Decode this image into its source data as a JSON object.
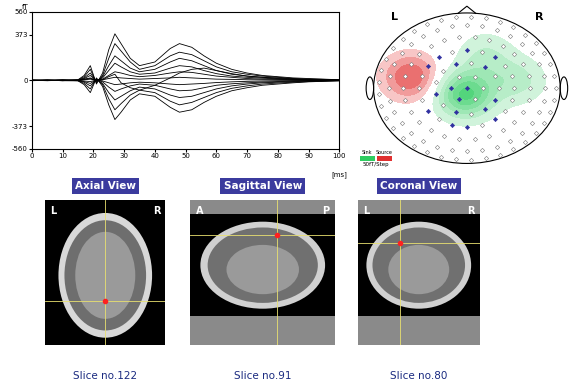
{
  "chart_data": {
    "type": "line",
    "color": "#000000",
    "x": [
      0,
      5,
      10,
      15,
      17,
      19,
      21,
      23,
      25,
      27,
      29,
      32,
      35,
      40,
      45,
      48,
      52,
      56,
      60,
      65,
      70,
      75,
      80,
      85,
      90,
      95,
      100
    ],
    "series": [
      {
        "values": [
          0,
          2,
          -3,
          5,
          40,
          120,
          -30,
          60,
          250,
          380,
          300,
          180,
          120,
          150,
          260,
          300,
          270,
          200,
          140,
          90,
          60,
          40,
          30,
          20,
          15,
          10,
          5
        ]
      },
      {
        "values": [
          3,
          -2,
          4,
          2,
          30,
          90,
          -20,
          40,
          180,
          300,
          240,
          150,
          90,
          120,
          200,
          230,
          210,
          160,
          110,
          70,
          50,
          35,
          25,
          15,
          10,
          8,
          4
        ]
      },
      {
        "values": [
          -2,
          3,
          -1,
          4,
          20,
          60,
          -10,
          30,
          120,
          200,
          160,
          100,
          70,
          90,
          150,
          180,
          160,
          120,
          80,
          50,
          35,
          25,
          20,
          12,
          8,
          5,
          2
        ]
      },
      {
        "values": [
          1,
          -3,
          2,
          -2,
          15,
          40,
          -5,
          20,
          80,
          140,
          110,
          70,
          50,
          60,
          100,
          120,
          110,
          80,
          55,
          35,
          25,
          18,
          12,
          8,
          5,
          3,
          1
        ]
      },
      {
        "values": [
          0,
          1,
          -2,
          3,
          10,
          20,
          0,
          10,
          40,
          70,
          60,
          40,
          30,
          40,
          60,
          70,
          65,
          50,
          35,
          25,
          15,
          10,
          8,
          5,
          3,
          2,
          0
        ]
      },
      {
        "values": [
          2,
          0,
          1,
          -1,
          5,
          10,
          2,
          5,
          15,
          25,
          20,
          15,
          10,
          15,
          20,
          25,
          20,
          15,
          10,
          8,
          5,
          4,
          3,
          2,
          1,
          1,
          0
        ]
      },
      {
        "values": [
          -1,
          2,
          -3,
          -4,
          -35,
          -100,
          20,
          -50,
          -200,
          -320,
          -260,
          -160,
          -110,
          -130,
          -220,
          -260,
          -240,
          -180,
          -130,
          -85,
          -60,
          -40,
          -30,
          -20,
          -12,
          -8,
          -4
        ]
      },
      {
        "values": [
          2,
          -2,
          1,
          -3,
          -25,
          -70,
          15,
          -35,
          -150,
          -240,
          -190,
          -120,
          -80,
          -100,
          -170,
          -200,
          -180,
          -140,
          -100,
          -65,
          -45,
          -30,
          -22,
          -15,
          -10,
          -6,
          -3
        ]
      },
      {
        "values": [
          -3,
          1,
          2,
          -2,
          -15,
          -45,
          8,
          -25,
          -100,
          -160,
          -130,
          -85,
          -55,
          -70,
          -120,
          -140,
          -130,
          -100,
          -70,
          -45,
          -30,
          -20,
          -15,
          -10,
          -6,
          -4,
          -2
        ]
      },
      {
        "values": [
          0,
          -1,
          1,
          -2,
          -10,
          -25,
          5,
          -12,
          -55,
          -90,
          -70,
          -45,
          -30,
          -40,
          -70,
          -85,
          -80,
          -60,
          -40,
          -28,
          -20,
          -14,
          -10,
          -6,
          -4,
          -2,
          -1
        ]
      },
      {
        "values": [
          1,
          2,
          -1,
          0,
          -5,
          -10,
          3,
          -5,
          -20,
          -35,
          -30,
          -20,
          -15,
          -20,
          -30,
          -35,
          -30,
          -25,
          -18,
          -12,
          -8,
          -6,
          -4,
          -3,
          -2,
          -1,
          0
        ]
      },
      {
        "values": [
          -2,
          0,
          3,
          1,
          8,
          15,
          -2,
          5,
          30,
          50,
          -20,
          -60,
          -80,
          -40,
          20,
          60,
          90,
          100,
          80,
          55,
          35,
          25,
          15,
          10,
          6,
          4,
          2
        ]
      }
    ],
    "xlim": [
      0,
      100
    ],
    "xticks": [
      0,
      10,
      20,
      30,
      40,
      50,
      60,
      70,
      80,
      90,
      100
    ],
    "ylim": [
      -560,
      560
    ],
    "yticks": [
      -560,
      -373,
      0,
      373,
      560
    ],
    "x_label": "[ms]",
    "y_label": "fT"
  },
  "topomap": {
    "side_labels": [
      "L",
      "R"
    ],
    "legend_entries": [
      {
        "name": "Sink",
        "color": "#2ecc60"
      },
      {
        "name": "Source",
        "color": "#e03030"
      }
    ],
    "scale_text": "50fT/Step",
    "step": 50,
    "poles": [
      {
        "x": -0.6,
        "y": 0.15,
        "amplitude": 200
      },
      {
        "x": -0.02,
        "y": -0.08,
        "amplitude": -320
      },
      {
        "x": 0.55,
        "y": 0.1,
        "amplitude": -120
      },
      {
        "x": 0.2,
        "y": 0.45,
        "amplitude": -100
      }
    ]
  },
  "mri_views": [
    {
      "title": "Axial View",
      "corners": [
        "L",
        "R"
      ],
      "caption": "Slice no.122"
    },
    {
      "title": "Sagittal View",
      "corners": [
        "A",
        "P"
      ],
      "caption": "Slice no.91"
    },
    {
      "title": "Coronal View",
      "corners": [
        "L",
        "R"
      ],
      "caption": "Slice no.80"
    }
  ]
}
